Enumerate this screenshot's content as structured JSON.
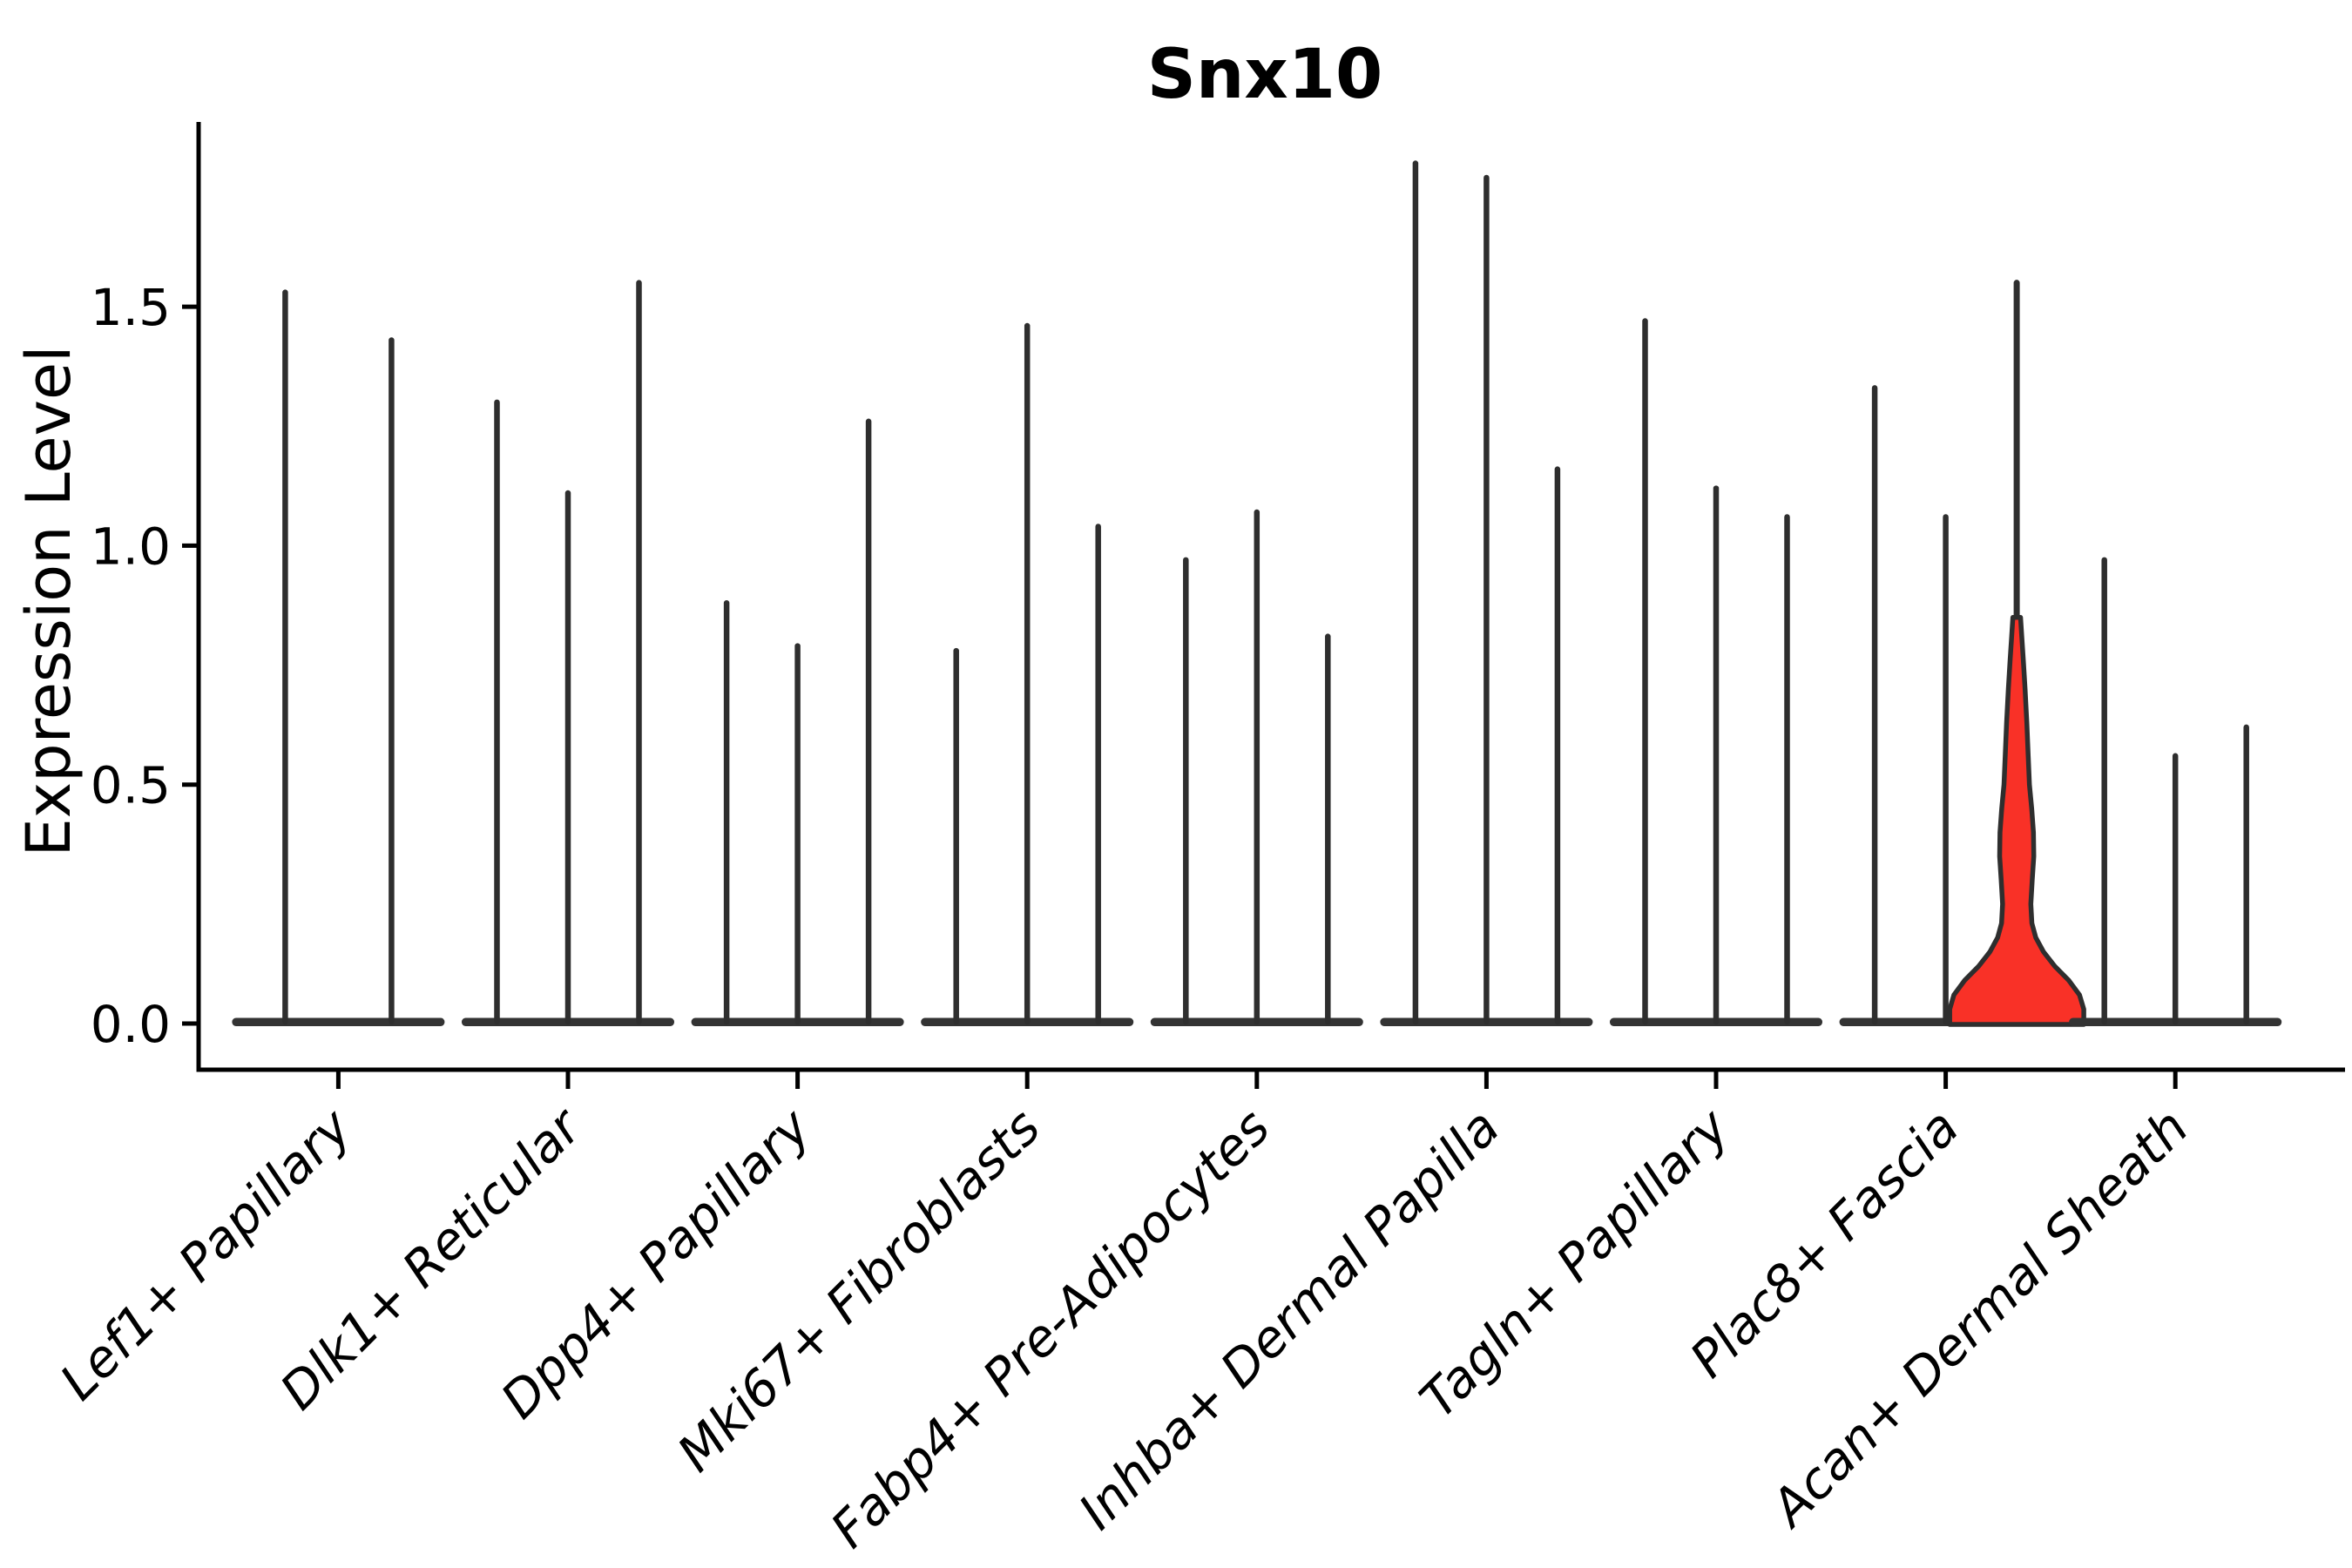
{
  "chart_data": {
    "type": "violin",
    "title": "Snx10",
    "ylabel": "Expression Level",
    "xlabel": "",
    "ytick_labels": [
      "0.0",
      "0.5",
      "1.0",
      "1.5"
    ],
    "ytick_values": [
      0.0,
      0.5,
      1.0,
      1.5
    ],
    "ylim": [
      0.0,
      1.89
    ],
    "grid": false,
    "legend": "none",
    "categories": [
      "Lef1+ Papillary",
      "Dlk1+ Reticular",
      "Dpp4+ Papillary",
      "Mki67+ Fibroblasts",
      "Fabp4+ Pre-Adipocytes",
      "Inhba+ Dermal Papilla",
      "Tagln+ Papillary",
      "Plac8+ Fascia",
      "Acan+ Dermal Sheath"
    ],
    "groups": [
      {
        "category": "Lef1+ Papillary",
        "violin_maxima": [
          1.53,
          1.43
        ],
        "highlighted_violin": null
      },
      {
        "category": "Dlk1+ Reticular",
        "violin_maxima": [
          1.3,
          1.11,
          1.55
        ],
        "highlighted_violin": null
      },
      {
        "category": "Dpp4+ Papillary",
        "violin_maxima": [
          0.88,
          0.79,
          1.26
        ],
        "highlighted_violin": null
      },
      {
        "category": "Mki67+ Fibroblasts",
        "violin_maxima": [
          0.78,
          1.46,
          1.04
        ],
        "highlighted_violin": null
      },
      {
        "category": "Fabp4+ Pre-Adipocytes",
        "violin_maxima": [
          0.97,
          1.07,
          0.81
        ],
        "highlighted_violin": null
      },
      {
        "category": "Inhba+ Dermal Papilla",
        "violin_maxima": [
          1.8,
          1.77,
          1.16
        ],
        "highlighted_violin": null
      },
      {
        "category": "Tagln+ Papillary",
        "violin_maxima": [
          1.47,
          1.12,
          1.06
        ],
        "highlighted_violin": null
      },
      {
        "category": "Plac8+ Fascia",
        "violin_maxima": [
          1.33,
          1.06,
          1.55
        ],
        "highlighted_violin": 2
      },
      {
        "category": "Acan+ Dermal Sheath",
        "violin_maxima": [
          0.97,
          0.56,
          0.62
        ],
        "highlighted_violin": null
      }
    ],
    "highlight": {
      "group": "Plac8+ Fascia",
      "violin_index": 2,
      "fill_color": "#f93127",
      "red_fill_top_value": 0.85,
      "profile": [
        [
          0.0,
          0.95
        ],
        [
          0.03,
          0.95
        ],
        [
          0.06,
          0.89
        ],
        [
          0.09,
          0.74
        ],
        [
          0.12,
          0.54
        ],
        [
          0.15,
          0.38
        ],
        [
          0.18,
          0.27
        ],
        [
          0.21,
          0.215
        ],
        [
          0.25,
          0.2
        ],
        [
          0.3,
          0.22
        ],
        [
          0.35,
          0.242
        ],
        [
          0.4,
          0.237
        ],
        [
          0.45,
          0.212
        ],
        [
          0.5,
          0.18
        ],
        [
          0.56,
          0.163
        ],
        [
          0.63,
          0.143
        ],
        [
          0.7,
          0.119
        ],
        [
          0.76,
          0.094
        ],
        [
          0.81,
          0.072
        ],
        [
          0.85,
          0.054
        ]
      ]
    },
    "colors": {
      "violin_line": "#2e2e2e",
      "violin_base": "#333333",
      "axis_spine": "#000000",
      "background": "#ffffff",
      "highlight_fill": "#f93127"
    }
  }
}
